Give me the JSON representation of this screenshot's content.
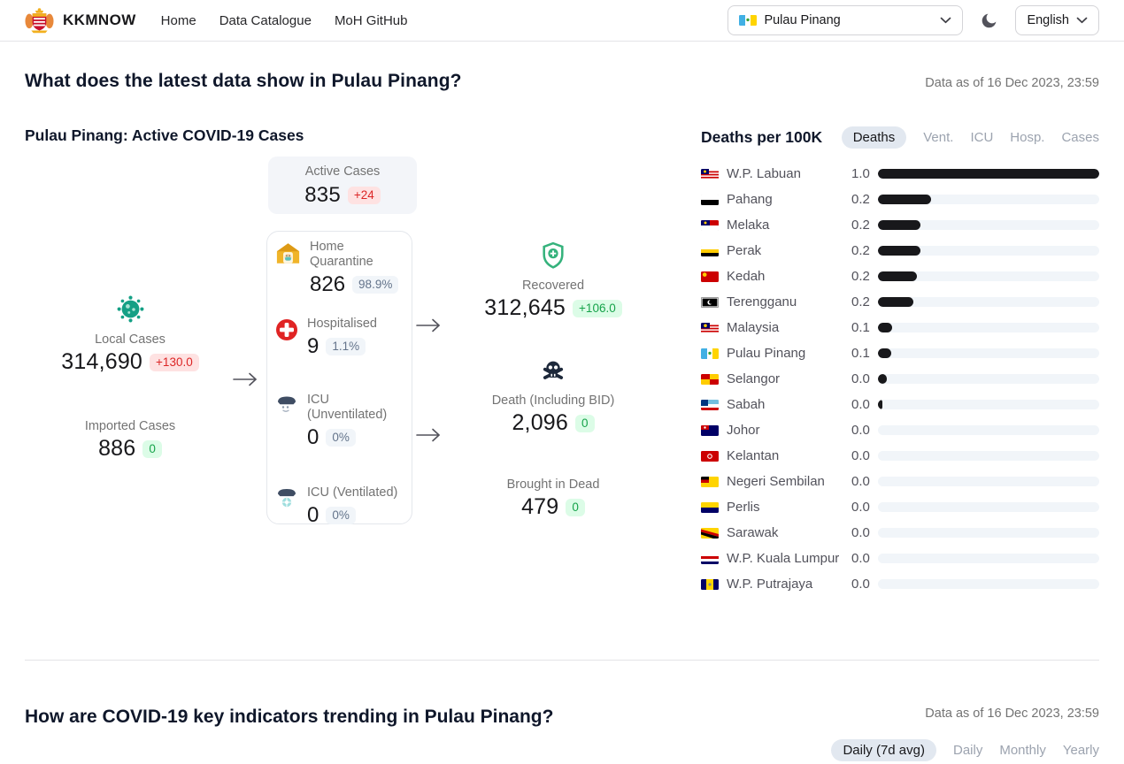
{
  "header": {
    "brand": "KKMNOW",
    "nav_links": [
      "Home",
      "Data Catalogue",
      "MoH GitHub"
    ],
    "state_selector": {
      "value": "Pulau Pinang",
      "flag": "pulau-pinang"
    },
    "language_selector": {
      "value": "English"
    }
  },
  "latest_section": {
    "heading": "What does the latest data show in Pulau Pinang?",
    "data_as_of": "Data as of 16 Dec 2023, 23:59",
    "flow": {
      "title": "Pulau Pinang: Active COVID-19 Cases",
      "active_cases": {
        "label": "Active Cases",
        "value": "835",
        "delta": "+24"
      },
      "local_cases": {
        "label": "Local Cases",
        "value": "314,690",
        "delta": "+130.0",
        "icon": "virus-icon"
      },
      "imported_cases": {
        "label": "Imported Cases",
        "value": "886",
        "delta": "0"
      },
      "breakdown": [
        {
          "label": "Home Quarantine",
          "value": "826",
          "share": "98.9%",
          "icon": "home-quarantine-icon"
        },
        {
          "label": "Hospitalised",
          "value": "9",
          "share": "1.1%",
          "icon": "hospital-cross-icon"
        },
        {
          "label": "ICU (Unventilated)",
          "value": "0",
          "share": "0%",
          "icon": "icu-bed-icon"
        },
        {
          "label": "ICU (Ventilated)",
          "value": "0",
          "share": "0%",
          "icon": "icu-ventilator-icon"
        }
      ],
      "recovered": {
        "label": "Recovered",
        "value": "312,645",
        "delta": "+106.0",
        "icon": "shield-plus-icon"
      },
      "death": {
        "label": "Death (Including BID)",
        "value": "2,096",
        "delta": "0",
        "icon": "skull-icon"
      },
      "brought_in_dead": {
        "label": "Brought in Dead",
        "value": "479",
        "delta": "0"
      }
    },
    "chart_panel": {
      "title": "Deaths per 100K",
      "tabs": [
        "Deaths",
        "Vent.",
        "ICU",
        "Hosp.",
        "Cases"
      ],
      "active_tab": "Deaths"
    }
  },
  "chart_data": {
    "type": "bar",
    "orientation": "horizontal",
    "title": "Deaths per 100K",
    "grid": false,
    "xlim": [
      0,
      1.0
    ],
    "categories": [
      "W.P. Labuan",
      "Pahang",
      "Melaka",
      "Perak",
      "Kedah",
      "Terengganu",
      "Malaysia",
      "Pulau Pinang",
      "Selangor",
      "Sabah",
      "Johor",
      "Kelantan",
      "Negeri Sembilan",
      "Perlis",
      "Sarawak",
      "W.P. Kuala Lumpur",
      "W.P. Putrajaya"
    ],
    "values": [
      1.0,
      0.2,
      0.2,
      0.2,
      0.2,
      0.2,
      0.1,
      0.1,
      0.0,
      0.0,
      0.0,
      0.0,
      0.0,
      0.0,
      0.0,
      0.0,
      0.0
    ],
    "bar_ratio": [
      1.0,
      0.24,
      0.19,
      0.19,
      0.175,
      0.16,
      0.065,
      0.06,
      0.038,
      0.022,
      0,
      0,
      0,
      0,
      0,
      0,
      0
    ],
    "flags": [
      "labuan",
      "pahang",
      "melaka",
      "perak",
      "kedah",
      "terengganu",
      "malaysia",
      "pulau-pinang",
      "selangor",
      "sabah",
      "johor",
      "kelantan",
      "negeri-sembilan",
      "perlis",
      "sarawak",
      "kuala-lumpur",
      "putrajaya"
    ],
    "bar_color": "#18181b",
    "track_color": "#f1f5f9"
  },
  "trend_section": {
    "heading": "How are COVID-19 key indicators trending in Pulau Pinang?",
    "data_as_of": "Data as of 16 Dec 2023, 23:59",
    "tabs": [
      "Daily (7d avg)",
      "Daily",
      "Monthly",
      "Yearly"
    ],
    "active_tab": "Daily (7d avg)"
  }
}
